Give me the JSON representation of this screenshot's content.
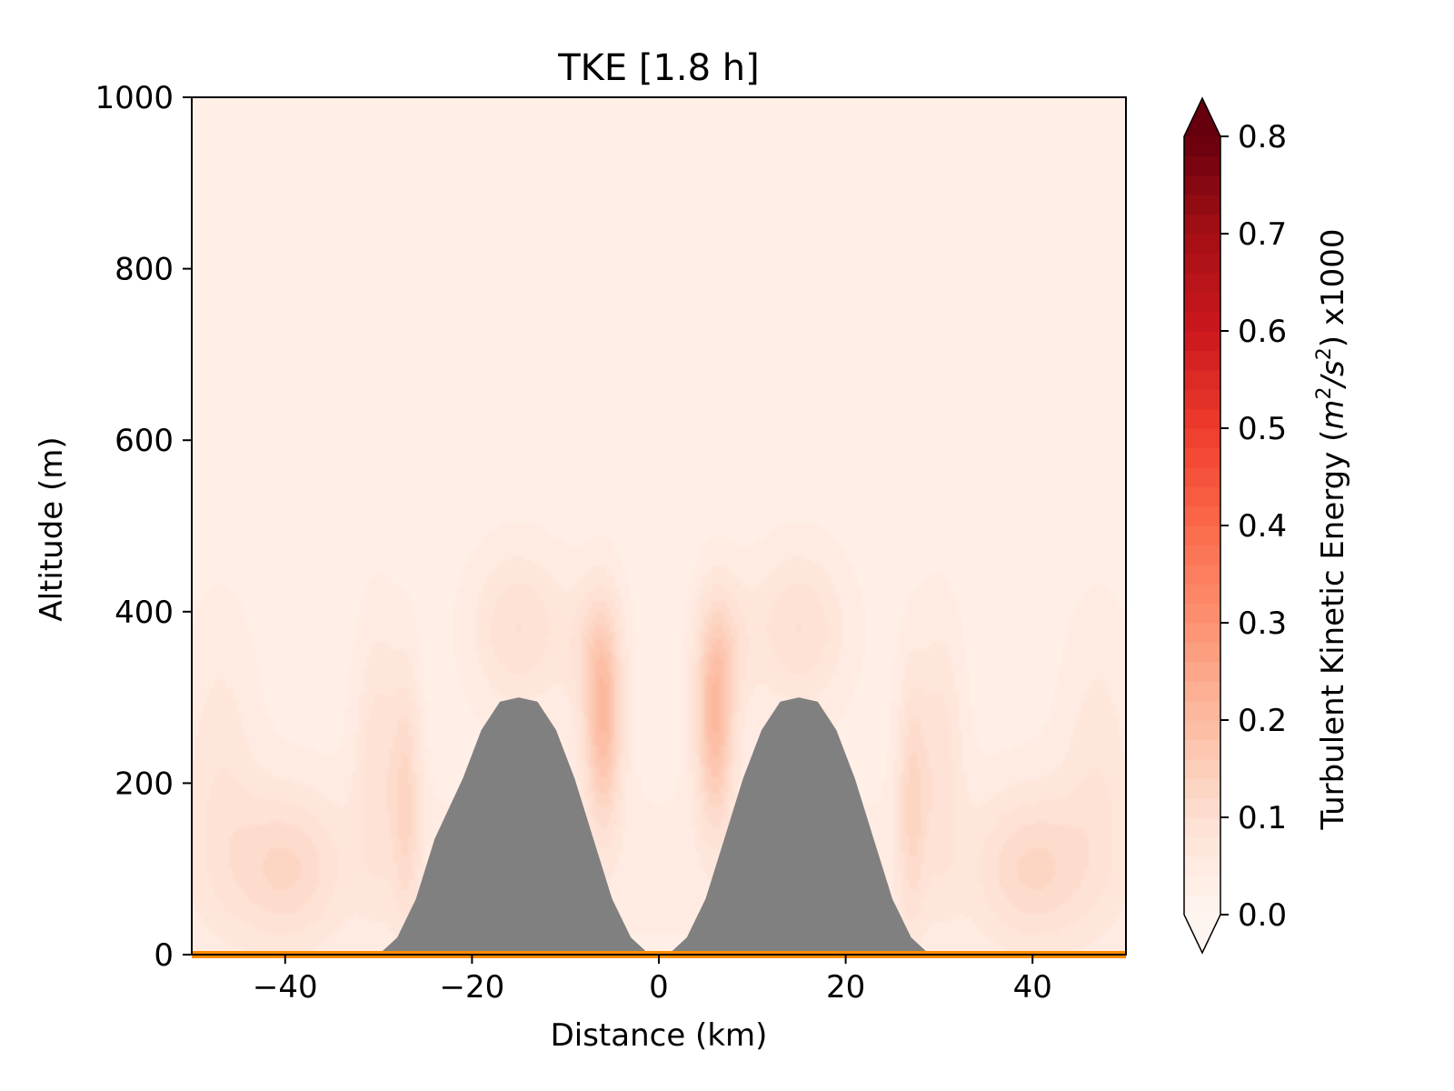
{
  "chart_data": {
    "type": "heatmap",
    "title": "TKE [1.8 h]",
    "xlabel": "Distance (km)",
    "ylabel": "Altitude (m)",
    "xlim": [
      -50,
      50
    ],
    "ylim": [
      0,
      1000
    ],
    "x_ticks": [
      -40,
      -20,
      0,
      20,
      40
    ],
    "x_tick_labels": [
      "−40",
      "−20",
      "0",
      "20",
      "40"
    ],
    "y_ticks": [
      0,
      200,
      400,
      600,
      800,
      1000
    ],
    "y_tick_labels": [
      "0",
      "200",
      "400",
      "600",
      "800",
      "1000"
    ],
    "grid": false,
    "colorbar": {
      "label": "Turbulent Kinetic Energy ($m^2/s^2$) x1000",
      "label_prefix": "Turbulent Kinetic Energy (",
      "label_m": "m",
      "label_exp1": "2",
      "label_slash": "/",
      "label_s": "s",
      "label_exp2": "2",
      "label_suffix": ") x1000",
      "range": [
        0.0,
        0.8
      ],
      "extend": "both",
      "colormap": "Reds",
      "ticks": [
        0.0,
        0.1,
        0.2,
        0.3,
        0.4,
        0.5,
        0.6,
        0.7,
        0.8
      ],
      "tick_labels": [
        "0.0",
        "0.1",
        "0.2",
        "0.3",
        "0.4",
        "0.5",
        "0.6",
        "0.7",
        "0.8"
      ]
    },
    "terrain": {
      "color": "#808080",
      "baseline_color": "#ff8c00",
      "profile_km_m": [
        [
          -30,
          0
        ],
        [
          -28,
          20
        ],
        [
          -26,
          65
        ],
        [
          -24,
          135
        ],
        [
          -21,
          205
        ],
        [
          -19,
          262
        ],
        [
          -17,
          295
        ],
        [
          -15,
          300
        ],
        [
          -13,
          295
        ],
        [
          -11,
          262
        ],
        [
          -9,
          205
        ],
        [
          -7,
          135
        ],
        [
          -5,
          65
        ],
        [
          -3,
          20
        ],
        [
          -1,
          0
        ],
        [
          1,
          0
        ],
        [
          3,
          20
        ],
        [
          5,
          65
        ],
        [
          7,
          135
        ],
        [
          9,
          205
        ],
        [
          11,
          262
        ],
        [
          13,
          295
        ],
        [
          15,
          300
        ],
        [
          17,
          295
        ],
        [
          19,
          262
        ],
        [
          21,
          205
        ],
        [
          23,
          135
        ],
        [
          25,
          65
        ],
        [
          27,
          20
        ],
        [
          29,
          0
        ]
      ]
    },
    "tke_field": {
      "background": 0.03,
      "features": [
        {
          "x": -47,
          "y": 220,
          "sx": 4,
          "sy": 180,
          "value": 0.04
        },
        {
          "x": 47,
          "y": 220,
          "sx": 4,
          "sy": 180,
          "value": 0.04
        },
        {
          "x": -40,
          "y": 100,
          "sx": 6,
          "sy": 90,
          "value": 0.08
        },
        {
          "x": 40,
          "y": 100,
          "sx": 6,
          "sy": 90,
          "value": 0.08
        },
        {
          "x": -27,
          "y": 180,
          "sx": 1.5,
          "sy": 150,
          "value": 0.08
        },
        {
          "x": 27,
          "y": 180,
          "sx": 1.5,
          "sy": 150,
          "value": 0.08
        },
        {
          "x": -30,
          "y": 230,
          "sx": 2.5,
          "sy": 160,
          "value": 0.06
        },
        {
          "x": 30,
          "y": 230,
          "sx": 2.5,
          "sy": 160,
          "value": 0.06
        },
        {
          "x": -15,
          "y": 380,
          "sx": 5,
          "sy": 90,
          "value": 0.07
        },
        {
          "x": 15,
          "y": 380,
          "sx": 5,
          "sy": 90,
          "value": 0.07
        },
        {
          "x": -6,
          "y": 270,
          "sx": 2,
          "sy": 120,
          "value": 0.16
        },
        {
          "x": 6,
          "y": 270,
          "sx": 2,
          "sy": 120,
          "value": 0.16
        },
        {
          "x": -7,
          "y": 360,
          "sx": 3,
          "sy": 80,
          "value": 0.05
        },
        {
          "x": 7,
          "y": 360,
          "sx": 3,
          "sy": 80,
          "value": 0.05
        }
      ]
    }
  }
}
